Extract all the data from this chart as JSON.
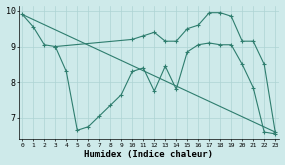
{
  "line1_x": [
    0,
    1,
    2,
    3,
    10,
    11,
    12,
    13,
    14,
    15,
    16,
    17,
    18,
    19,
    20,
    21,
    22,
    23
  ],
  "line1_y": [
    9.9,
    9.55,
    9.05,
    9.0,
    9.2,
    9.3,
    9.4,
    9.15,
    9.15,
    9.5,
    9.6,
    9.95,
    9.95,
    9.85,
    9.15,
    9.15,
    8.5,
    6.6
  ],
  "line2_x": [
    0,
    23
  ],
  "line2_y": [
    9.9,
    6.6
  ],
  "line3_x": [
    3,
    4,
    5,
    6,
    7,
    8,
    9,
    10,
    11,
    12,
    13,
    14,
    15,
    16,
    17,
    18,
    19,
    20,
    21,
    22,
    23
  ],
  "line3_y": [
    9.0,
    8.3,
    6.65,
    6.75,
    7.05,
    7.35,
    7.65,
    8.3,
    8.4,
    7.75,
    8.45,
    7.8,
    8.85,
    9.05,
    9.1,
    9.05,
    9.05,
    8.5,
    7.85,
    6.6,
    6.55
  ],
  "color": "#2e7d6e",
  "bg_color": "#ceeaea",
  "grid_color": "#aed4d4",
  "xlabel": "Humidex (Indice chaleur)",
  "ylim": [
    6.4,
    10.15
  ],
  "xlim": [
    -0.3,
    23.3
  ],
  "yticks": [
    7,
    8,
    9,
    10
  ],
  "xticks": [
    0,
    1,
    2,
    3,
    4,
    5,
    6,
    7,
    8,
    9,
    10,
    11,
    12,
    13,
    14,
    15,
    16,
    17,
    18,
    19,
    20,
    21,
    22,
    23
  ]
}
